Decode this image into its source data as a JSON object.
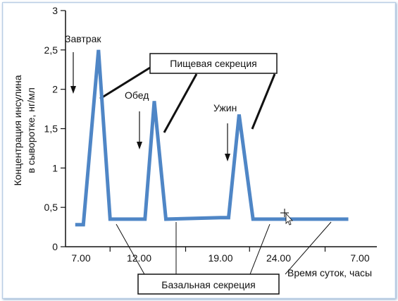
{
  "chart_data": {
    "type": "line",
    "ylabel_line1": "Концентрация инсулина",
    "ylabel_line2": "в сыворотке,  нг/мл",
    "xlabel": "Время суток, часы",
    "x_tick_labels": [
      "7.00",
      "12.00",
      "19.00",
      "24.00",
      "7.00"
    ],
    "y_ticks": [
      0,
      0.5,
      1,
      1.5,
      2,
      2.5,
      3
    ],
    "y_tick_labels": [
      "0",
      "0,5",
      "1",
      "1,5",
      "2",
      "2,5",
      "3"
    ],
    "ylim": [
      0,
      3
    ],
    "series": [
      {
        "color": "#4f86c6",
        "x": [
          6.5,
          7.2,
          8.5,
          9.5,
          12.5,
          13.3,
          14.3,
          19.0,
          19.7,
          20.6,
          21.8,
          30.0
        ],
        "y": [
          0.28,
          0.28,
          2.5,
          0.35,
          0.35,
          1.85,
          0.35,
          0.37,
          0.37,
          1.68,
          0.35,
          0.35
        ]
      }
    ],
    "annotations": {
      "breakfast": "Завтрак",
      "lunch": "Обед",
      "dinner": "Ужин",
      "meal_secretion": "Пищевая секреция",
      "basal_secretion": "Базальная секреция"
    },
    "grid": false,
    "legend": "none"
  }
}
